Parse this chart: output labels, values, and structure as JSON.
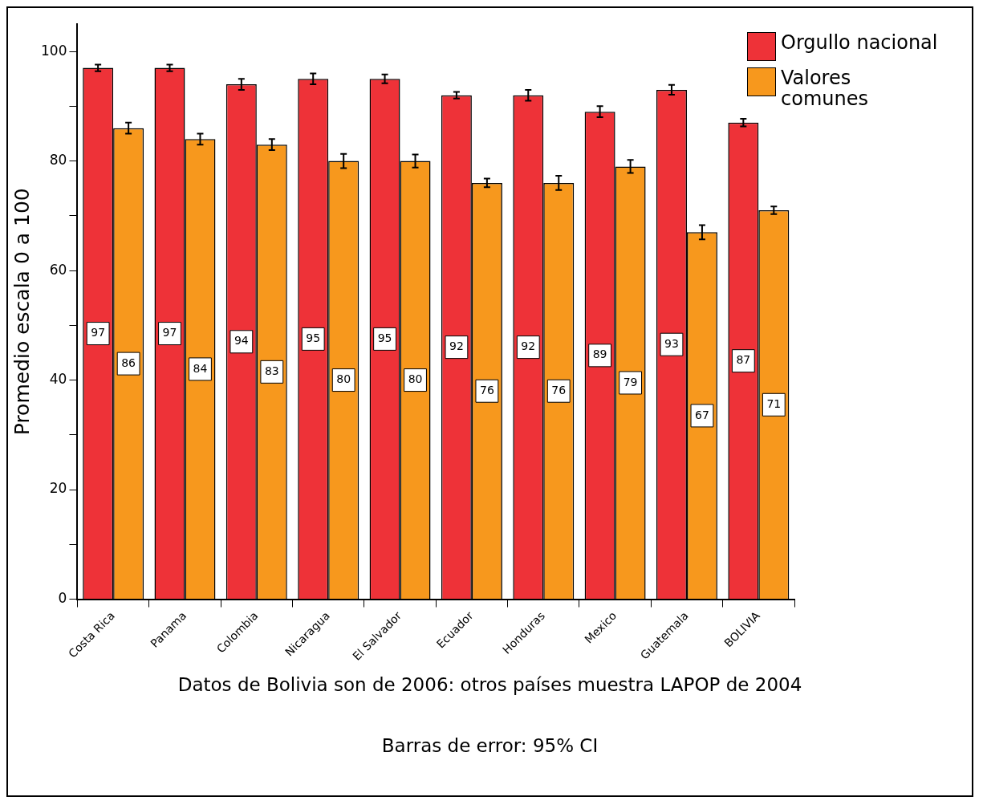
{
  "chart_data": {
    "type": "bar",
    "ylabel": "Promedio escala 0 a 100",
    "categories": [
      "Costa Rica",
      "Panama",
      "Colombia",
      "Nicaragua",
      "El Salvador",
      "Ecuador",
      "Honduras",
      "Mexico",
      "Guatemala",
      "BOLIVIA"
    ],
    "series": [
      {
        "name": "Orgullo nacional",
        "color": "#ee3238",
        "values": [
          97,
          97,
          94,
          95,
          95,
          92,
          92,
          89,
          93,
          87
        ],
        "errors": [
          0.6,
          0.6,
          1,
          1,
          0.8,
          0.6,
          1,
          1,
          0.9,
          0.7
        ]
      },
      {
        "name": "Valores comunes",
        "color": "#f7981d",
        "values": [
          86,
          84,
          83,
          80,
          80,
          76,
          76,
          79,
          67,
          71
        ],
        "errors": [
          1,
          1,
          1,
          1.3,
          1.2,
          0.8,
          1.3,
          1.2,
          1.3,
          0.7
        ]
      }
    ],
    "ylim": [
      0,
      105
    ],
    "yticks": [
      0,
      {
        "value": 10,
        "label": null
      },
      20,
      {
        "value": 30,
        "label": null
      },
      40,
      {
        "value": 50,
        "label": null
      },
      60,
      {
        "value": 70,
        "label": null
      },
      80,
      {
        "value": 90,
        "label": null
      },
      100
    ],
    "grid": false,
    "legend": "top right",
    "data_labels": true,
    "annotations": [
      "Datos de Bolivia son de 2006: otros países muestra LAPOP de 2004",
      "Barras de error: 95% CI"
    ]
  }
}
